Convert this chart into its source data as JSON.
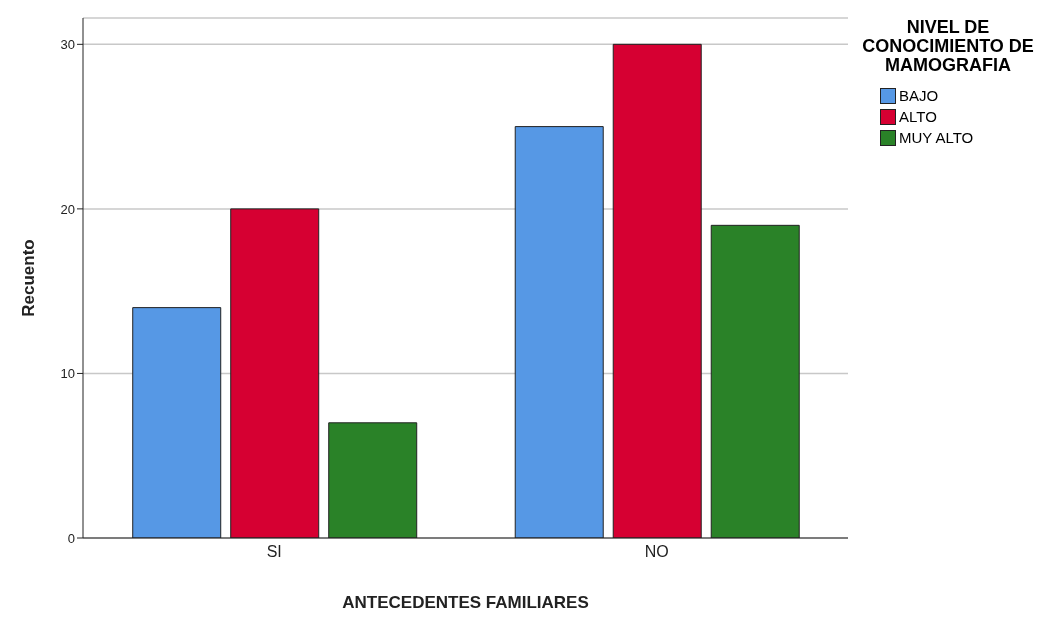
{
  "chart_data": {
    "type": "bar",
    "xlabel": "ANTECEDENTES FAMILIARES",
    "ylabel": "Recuento",
    "legend_title": "NIVEL DE CONOCIMIENTO DE MAMOGRAFIA",
    "categories": [
      "SI",
      "NO"
    ],
    "series": [
      {
        "name": "BAJO",
        "color": "#5698e5",
        "values": [
          14,
          25
        ]
      },
      {
        "name": "ALTO",
        "color": "#d60032",
        "values": [
          20,
          30
        ]
      },
      {
        "name": "MUY ALTO",
        "color": "#2a8228",
        "values": [
          7,
          19
        ]
      }
    ],
    "ylim": [
      0,
      31.6
    ],
    "yticks": [
      0,
      10,
      20,
      30
    ],
    "grid": "y",
    "legend": "top right"
  }
}
